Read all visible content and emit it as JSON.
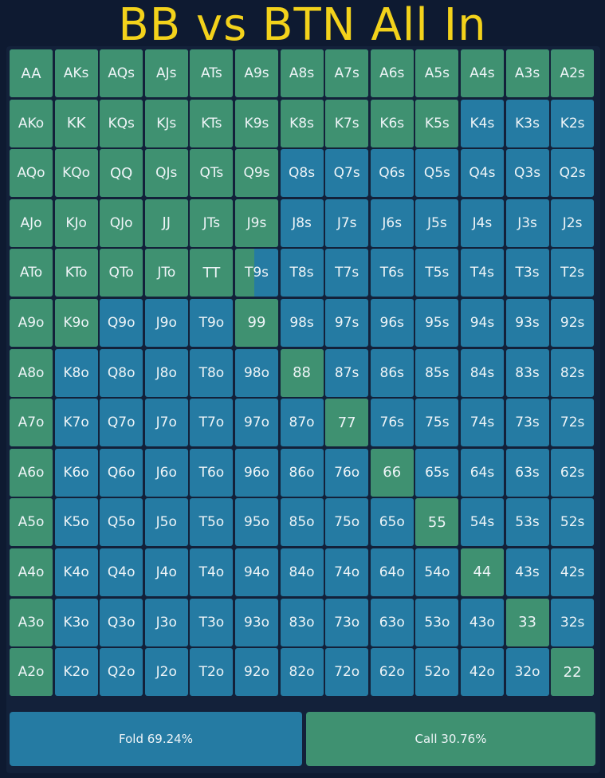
{
  "title": "BB vs BTN All In",
  "colors": {
    "fold": "#257ba3",
    "call": "#3f9171",
    "title": "#f3d21b",
    "background": "#0e1a31"
  },
  "grid": [
    [
      [
        "AA",
        1
      ],
      [
        "AKs",
        1
      ],
      [
        "AQs",
        1
      ],
      [
        "AJs",
        1
      ],
      [
        "ATs",
        1
      ],
      [
        "A9s",
        1
      ],
      [
        "A8s",
        1
      ],
      [
        "A7s",
        1
      ],
      [
        "A6s",
        1
      ],
      [
        "A5s",
        1
      ],
      [
        "A4s",
        1
      ],
      [
        "A3s",
        1
      ],
      [
        "A2s",
        1
      ]
    ],
    [
      [
        "AKo",
        1
      ],
      [
        "KK",
        1
      ],
      [
        "KQs",
        1
      ],
      [
        "KJs",
        1
      ],
      [
        "KTs",
        1
      ],
      [
        "K9s",
        1
      ],
      [
        "K8s",
        1
      ],
      [
        "K7s",
        1
      ],
      [
        "K6s",
        1
      ],
      [
        "K5s",
        1
      ],
      [
        "K4s",
        0
      ],
      [
        "K3s",
        0
      ],
      [
        "K2s",
        0
      ]
    ],
    [
      [
        "AQo",
        1
      ],
      [
        "KQo",
        1
      ],
      [
        "QQ",
        1
      ],
      [
        "QJs",
        1
      ],
      [
        "QTs",
        1
      ],
      [
        "Q9s",
        1
      ],
      [
        "Q8s",
        0
      ],
      [
        "Q7s",
        0
      ],
      [
        "Q6s",
        0
      ],
      [
        "Q5s",
        0
      ],
      [
        "Q4s",
        0
      ],
      [
        "Q3s",
        0
      ],
      [
        "Q2s",
        0
      ]
    ],
    [
      [
        "AJo",
        1
      ],
      [
        "KJo",
        1
      ],
      [
        "QJo",
        1
      ],
      [
        "JJ",
        1
      ],
      [
        "JTs",
        1
      ],
      [
        "J9s",
        1
      ],
      [
        "J8s",
        0
      ],
      [
        "J7s",
        0
      ],
      [
        "J6s",
        0
      ],
      [
        "J5s",
        0
      ],
      [
        "J4s",
        0
      ],
      [
        "J3s",
        0
      ],
      [
        "J2s",
        0
      ]
    ],
    [
      [
        "ATo",
        1
      ],
      [
        "KTo",
        1
      ],
      [
        "QTo",
        1
      ],
      [
        "JTo",
        1
      ],
      [
        "TT",
        1
      ],
      [
        "T9s",
        0.45
      ],
      [
        "T8s",
        0
      ],
      [
        "T7s",
        0
      ],
      [
        "T6s",
        0
      ],
      [
        "T5s",
        0
      ],
      [
        "T4s",
        0
      ],
      [
        "T3s",
        0
      ],
      [
        "T2s",
        0
      ]
    ],
    [
      [
        "A9o",
        1
      ],
      [
        "K9o",
        1
      ],
      [
        "Q9o",
        0
      ],
      [
        "J9o",
        0
      ],
      [
        "T9o",
        0
      ],
      [
        "99",
        1
      ],
      [
        "98s",
        0
      ],
      [
        "97s",
        0
      ],
      [
        "96s",
        0
      ],
      [
        "95s",
        0
      ],
      [
        "94s",
        0
      ],
      [
        "93s",
        0
      ],
      [
        "92s",
        0
      ]
    ],
    [
      [
        "A8o",
        1
      ],
      [
        "K8o",
        0
      ],
      [
        "Q8o",
        0
      ],
      [
        "J8o",
        0
      ],
      [
        "T8o",
        0
      ],
      [
        "98o",
        0
      ],
      [
        "88",
        1
      ],
      [
        "87s",
        0
      ],
      [
        "86s",
        0
      ],
      [
        "85s",
        0
      ],
      [
        "84s",
        0
      ],
      [
        "83s",
        0
      ],
      [
        "82s",
        0
      ]
    ],
    [
      [
        "A7o",
        1
      ],
      [
        "K7o",
        0
      ],
      [
        "Q7o",
        0
      ],
      [
        "J7o",
        0
      ],
      [
        "T7o",
        0
      ],
      [
        "97o",
        0
      ],
      [
        "87o",
        0
      ],
      [
        "77",
        1
      ],
      [
        "76s",
        0
      ],
      [
        "75s",
        0
      ],
      [
        "74s",
        0
      ],
      [
        "73s",
        0
      ],
      [
        "72s",
        0
      ]
    ],
    [
      [
        "A6o",
        1
      ],
      [
        "K6o",
        0
      ],
      [
        "Q6o",
        0
      ],
      [
        "J6o",
        0
      ],
      [
        "T6o",
        0
      ],
      [
        "96o",
        0
      ],
      [
        "86o",
        0
      ],
      [
        "76o",
        0
      ],
      [
        "66",
        1
      ],
      [
        "65s",
        0
      ],
      [
        "64s",
        0
      ],
      [
        "63s",
        0
      ],
      [
        "62s",
        0
      ]
    ],
    [
      [
        "A5o",
        1
      ],
      [
        "K5o",
        0
      ],
      [
        "Q5o",
        0
      ],
      [
        "J5o",
        0
      ],
      [
        "T5o",
        0
      ],
      [
        "95o",
        0
      ],
      [
        "85o",
        0
      ],
      [
        "75o",
        0
      ],
      [
        "65o",
        0
      ],
      [
        "55",
        1
      ],
      [
        "54s",
        0
      ],
      [
        "53s",
        0
      ],
      [
        "52s",
        0
      ]
    ],
    [
      [
        "A4o",
        1
      ],
      [
        "K4o",
        0
      ],
      [
        "Q4o",
        0
      ],
      [
        "J4o",
        0
      ],
      [
        "T4o",
        0
      ],
      [
        "94o",
        0
      ],
      [
        "84o",
        0
      ],
      [
        "74o",
        0
      ],
      [
        "64o",
        0
      ],
      [
        "54o",
        0
      ],
      [
        "44",
        1
      ],
      [
        "43s",
        0
      ],
      [
        "42s",
        0
      ]
    ],
    [
      [
        "A3o",
        1
      ],
      [
        "K3o",
        0
      ],
      [
        "Q3o",
        0
      ],
      [
        "J3o",
        0
      ],
      [
        "T3o",
        0
      ],
      [
        "93o",
        0
      ],
      [
        "83o",
        0
      ],
      [
        "73o",
        0
      ],
      [
        "63o",
        0
      ],
      [
        "53o",
        0
      ],
      [
        "43o",
        0
      ],
      [
        "33",
        1
      ],
      [
        "32s",
        0
      ]
    ],
    [
      [
        "A2o",
        1
      ],
      [
        "K2o",
        0
      ],
      [
        "Q2o",
        0
      ],
      [
        "J2o",
        0
      ],
      [
        "T2o",
        0
      ],
      [
        "92o",
        0
      ],
      [
        "82o",
        0
      ],
      [
        "72o",
        0
      ],
      [
        "62o",
        0
      ],
      [
        "52o",
        0
      ],
      [
        "42o",
        0
      ],
      [
        "32o",
        0
      ],
      [
        "22",
        1
      ]
    ]
  ],
  "actions": {
    "fold_label": "Fold 69.24%",
    "call_label": "Call 30.76%"
  }
}
